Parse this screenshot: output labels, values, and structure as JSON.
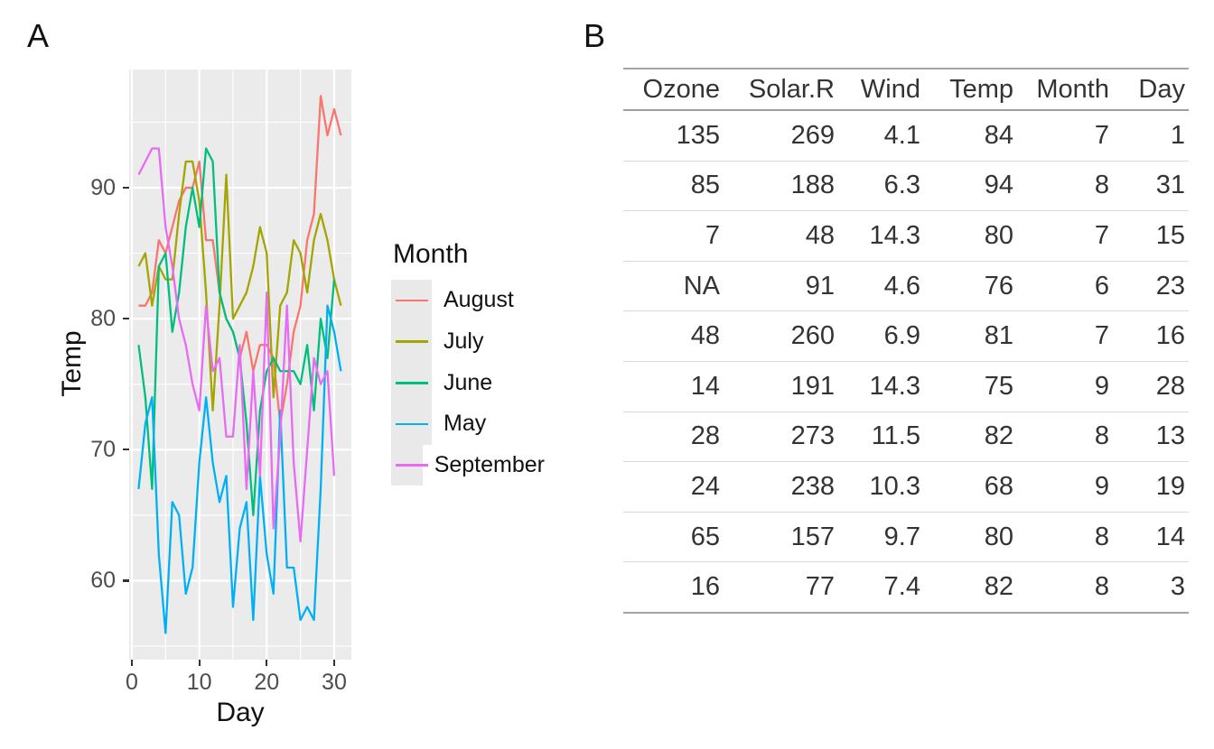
{
  "figure": {
    "panel_a_label": "A",
    "panel_b_label": "B"
  },
  "chart_data": {
    "type": "line",
    "xlabel": "Day",
    "ylabel": "Temp",
    "legend_title": "Month",
    "legend_position": "right",
    "grid": true,
    "x_ticks": [
      0,
      10,
      20,
      30
    ],
    "x_minor": [
      5,
      15,
      25
    ],
    "y_ticks": [
      60,
      70,
      80,
      90
    ],
    "y_minor": [
      55,
      65,
      75,
      85,
      95
    ],
    "xlim": [
      -0.4,
      32.55
    ],
    "ylim": [
      53.97,
      99.03
    ],
    "panel_bg": "#EBEBEB",
    "grid_color": "#FFFFFF",
    "legend_key_bg": "#E9E9E9",
    "axis_text_color": "#4D4D4D",
    "series": [
      {
        "name": "August",
        "color": "#F8766D",
        "days": [
          1,
          2,
          3,
          4,
          5,
          6,
          7,
          8,
          9,
          10,
          11,
          12,
          13,
          14,
          15,
          16,
          17,
          18,
          19,
          20,
          21,
          22,
          23,
          24,
          25,
          26,
          27,
          28,
          29,
          30,
          31
        ],
        "temps": [
          81,
          81,
          82,
          86,
          85,
          87,
          89,
          90,
          90,
          92,
          86,
          86,
          82,
          80,
          79,
          77,
          79,
          76,
          78,
          78,
          77,
          72,
          75,
          79,
          81,
          86,
          88,
          97,
          94,
          96,
          94
        ]
      },
      {
        "name": "July",
        "color": "#A3A500",
        "days": [
          1,
          2,
          3,
          4,
          5,
          6,
          7,
          8,
          9,
          10,
          11,
          12,
          13,
          14,
          15,
          16,
          17,
          18,
          19,
          20,
          21,
          22,
          23,
          24,
          25,
          26,
          27,
          28,
          29,
          30,
          31
        ],
        "temps": [
          84,
          85,
          81,
          84,
          83,
          83,
          88,
          92,
          92,
          89,
          82,
          73,
          81,
          91,
          80,
          81,
          82,
          84,
          87,
          85,
          74,
          81,
          82,
          86,
          85,
          82,
          86,
          88,
          86,
          83,
          81
        ]
      },
      {
        "name": "June",
        "color": "#00BF7D",
        "days": [
          1,
          2,
          3,
          4,
          5,
          6,
          7,
          8,
          9,
          10,
          11,
          12,
          13,
          14,
          15,
          16,
          17,
          18,
          19,
          20,
          21,
          22,
          23,
          24,
          25,
          26,
          27,
          28,
          29,
          30
        ],
        "temps": [
          78,
          74,
          67,
          84,
          85,
          79,
          82,
          87,
          90,
          87,
          93,
          92,
          82,
          80,
          79,
          77,
          72,
          65,
          73,
          76,
          77,
          76,
          76,
          76,
          75,
          78,
          73,
          80,
          77,
          83
        ]
      },
      {
        "name": "May",
        "color": "#00B0F6",
        "days": [
          1,
          2,
          3,
          4,
          5,
          6,
          7,
          8,
          9,
          10,
          11,
          12,
          13,
          14,
          15,
          16,
          17,
          18,
          19,
          20,
          21,
          22,
          23,
          24,
          25,
          26,
          27,
          28,
          29,
          30,
          31
        ],
        "temps": [
          67,
          72,
          74,
          62,
          56,
          66,
          65,
          59,
          61,
          69,
          74,
          69,
          66,
          68,
          58,
          64,
          66,
          57,
          68,
          62,
          59,
          73,
          61,
          61,
          57,
          58,
          57,
          67,
          81,
          79,
          76
        ]
      },
      {
        "name": "September",
        "color": "#E76BF3",
        "days": [
          1,
          2,
          3,
          4,
          5,
          6,
          7,
          8,
          9,
          10,
          11,
          12,
          13,
          14,
          15,
          16,
          17,
          18,
          19,
          20,
          21,
          22,
          23,
          24,
          25,
          26,
          27,
          28,
          29,
          30
        ],
        "temps": [
          91,
          92,
          93,
          93,
          87,
          84,
          80,
          78,
          75,
          73,
          81,
          76,
          77,
          71,
          71,
          78,
          67,
          76,
          68,
          82,
          64,
          71,
          81,
          69,
          63,
          70,
          77,
          75,
          76,
          68
        ]
      }
    ]
  },
  "table": {
    "columns": [
      "Ozone",
      "Solar.R",
      "Wind",
      "Temp",
      "Month",
      "Day"
    ],
    "rows": [
      [
        "135",
        "269",
        "4.1",
        "84",
        "7",
        "1"
      ],
      [
        "85",
        "188",
        "6.3",
        "94",
        "8",
        "31"
      ],
      [
        "7",
        "48",
        "14.3",
        "80",
        "7",
        "15"
      ],
      [
        "NA",
        "91",
        "4.6",
        "76",
        "6",
        "23"
      ],
      [
        "48",
        "260",
        "6.9",
        "81",
        "7",
        "16"
      ],
      [
        "14",
        "191",
        "14.3",
        "75",
        "9",
        "28"
      ],
      [
        "28",
        "273",
        "11.5",
        "82",
        "8",
        "13"
      ],
      [
        "24",
        "238",
        "10.3",
        "68",
        "9",
        "19"
      ],
      [
        "65",
        "157",
        "9.7",
        "80",
        "8",
        "14"
      ],
      [
        "16",
        "77",
        "7.4",
        "82",
        "8",
        "3"
      ]
    ],
    "text_color": "#333333",
    "border_color": "#A3A3A3"
  }
}
